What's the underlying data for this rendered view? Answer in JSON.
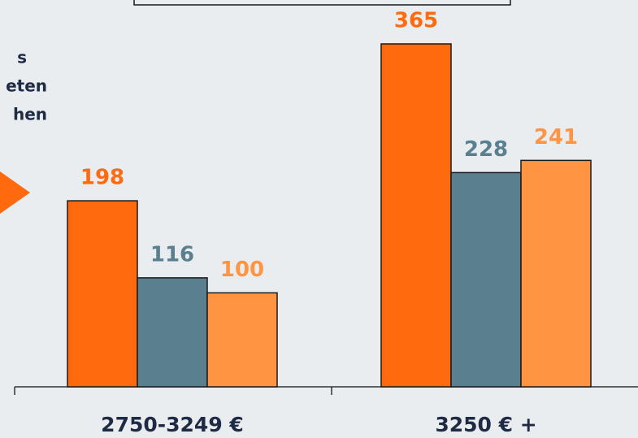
{
  "chart_data": {
    "type": "bar",
    "categories": [
      "2750-3249 €",
      "3250 € +"
    ],
    "series": [
      {
        "color": "#ff6a0e",
        "values": [
          198,
          365
        ]
      },
      {
        "color": "#5a7f8e",
        "values": [
          116,
          228
        ]
      },
      {
        "color": "#ff9443",
        "values": [
          100,
          241
        ]
      }
    ],
    "annotations": [
      "s",
      "eten",
      "hen"
    ]
  }
}
